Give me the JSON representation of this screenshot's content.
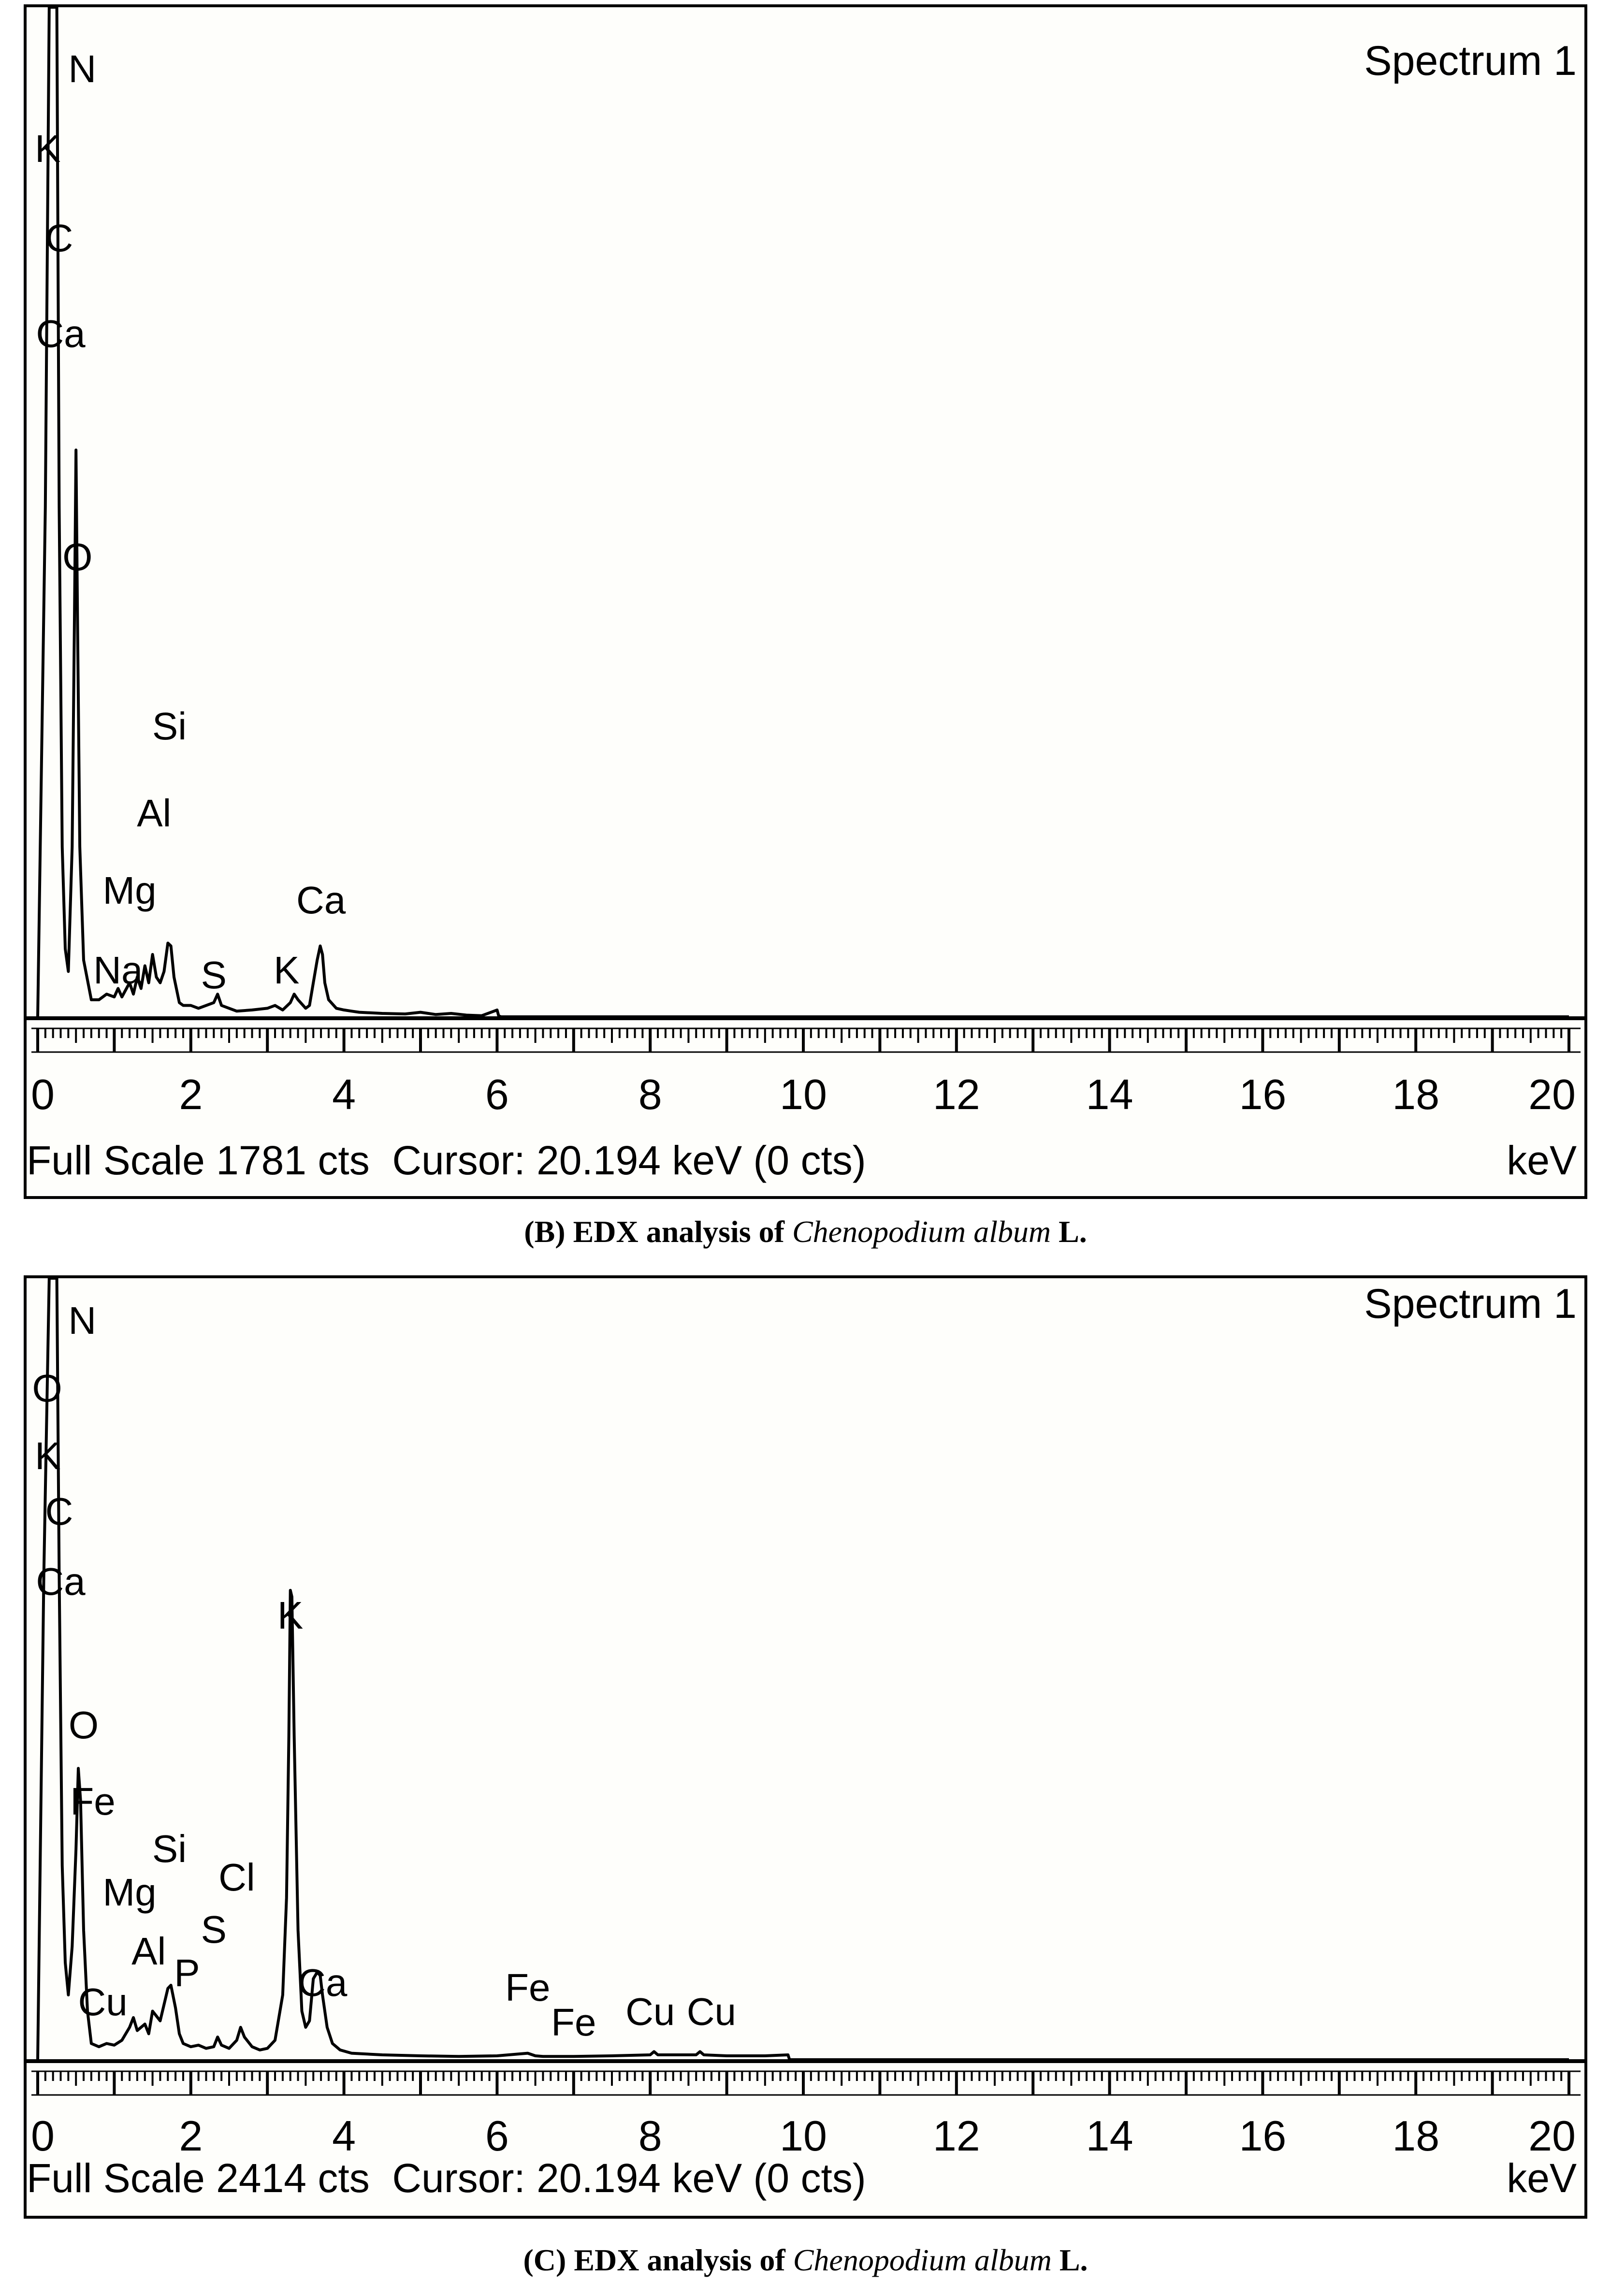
{
  "chart_data": [
    {
      "type": "line",
      "spectrum_label": "Spectrum 1",
      "xlim": [
        0,
        20
      ],
      "x_ticks": [
        0,
        2,
        4,
        6,
        8,
        10,
        12,
        14,
        16,
        18,
        20
      ],
      "x_unit": "keV",
      "full_scale_cts": 1781,
      "status_text": "Full Scale 1781 cts  Cursor: 20.194 keV (0 cts)",
      "series": [
        {
          "x": [
            0,
            0.1,
            0.15,
            0.2,
            0.25,
            0.28,
            0.32,
            0.36,
            0.4,
            0.45,
            0.48,
            0.5,
            0.52,
            0.55,
            0.6,
            0.7,
            0.8,
            0.9,
            1.0,
            1.05,
            1.1,
            1.2,
            1.25,
            1.3,
            1.35,
            1.4,
            1.45,
            1.5,
            1.55,
            1.6,
            1.65,
            1.7,
            1.74,
            1.78,
            1.85,
            1.9,
            2.0,
            2.1,
            2.2,
            2.3,
            2.35,
            2.4,
            2.5,
            2.6,
            2.8,
            3.0,
            3.1,
            3.2,
            3.3,
            3.35,
            3.4,
            3.5,
            3.55,
            3.6,
            3.65,
            3.69,
            3.72,
            3.75,
            3.8,
            3.9,
            4.0,
            4.1,
            4.2,
            4.5,
            4.8,
            5.0,
            5.2,
            5.4,
            5.6,
            5.8,
            6.0,
            6.02,
            6.05,
            6.2,
            20
          ],
          "y": [
            0,
            900,
            2050,
            2300,
            2000,
            900,
            300,
            120,
            80,
            300,
            700,
            1000,
            700,
            300,
            100,
            30,
            30,
            40,
            35,
            50,
            35,
            60,
            40,
            70,
            50,
            90,
            60,
            110,
            70,
            60,
            80,
            130,
            125,
            70,
            25,
            20,
            20,
            15,
            20,
            25,
            40,
            20,
            15,
            10,
            12,
            15,
            20,
            12,
            25,
            40,
            30,
            15,
            20,
            60,
            100,
            125,
            110,
            60,
            30,
            15,
            12,
            10,
            8,
            6,
            5,
            8,
            4,
            6,
            3,
            2,
            12,
            2,
            0,
            0,
            0
          ]
        }
      ],
      "peak_labels": [
        "N",
        "K",
        "C",
        "Ca",
        "O",
        "Si",
        "Al",
        "Mg",
        "Ca",
        "Na",
        "S",
        "K"
      ],
      "caption": {
        "prefix": "(B) EDX analysis of ",
        "species": "Chenopodium album",
        "suffix": " L."
      }
    },
    {
      "type": "line",
      "spectrum_label": "Spectrum 1",
      "xlim": [
        0,
        20
      ],
      "x_ticks": [
        0,
        2,
        4,
        6,
        8,
        10,
        12,
        14,
        16,
        18,
        20
      ],
      "x_unit": "keV",
      "full_scale_cts": 2414,
      "status_text": "Full Scale 2414 cts  Cursor: 20.194 keV (0 cts)",
      "series": [
        {
          "x": [
            0,
            0.08,
            0.15,
            0.2,
            0.25,
            0.28,
            0.32,
            0.36,
            0.4,
            0.45,
            0.5,
            0.53,
            0.56,
            0.6,
            0.65,
            0.7,
            0.8,
            0.9,
            1.0,
            1.1,
            1.2,
            1.25,
            1.3,
            1.4,
            1.45,
            1.5,
            1.6,
            1.7,
            1.74,
            1.8,
            1.85,
            1.9,
            2.0,
            2.1,
            2.2,
            2.3,
            2.35,
            2.4,
            2.5,
            2.6,
            2.65,
            2.7,
            2.8,
            2.9,
            3.0,
            3.1,
            3.2,
            3.25,
            3.28,
            3.3,
            3.32,
            3.35,
            3.4,
            3.45,
            3.5,
            3.55,
            3.6,
            3.65,
            3.69,
            3.72,
            3.78,
            3.85,
            3.95,
            4.1,
            4.5,
            5.0,
            5.5,
            6.0,
            6.4,
            6.5,
            6.6,
            7.0,
            7.5,
            8.0,
            8.05,
            8.1,
            8.6,
            8.65,
            8.7,
            9.0,
            9.5,
            9.8,
            9.82,
            20
          ],
          "y": [
            0,
            1500,
            2700,
            3000,
            2800,
            1500,
            600,
            300,
            200,
            350,
            650,
            900,
            800,
            400,
            150,
            50,
            40,
            50,
            45,
            60,
            100,
            130,
            90,
            110,
            80,
            150,
            120,
            220,
            230,
            160,
            80,
            50,
            40,
            45,
            35,
            40,
            70,
            45,
            35,
            60,
            100,
            70,
            40,
            30,
            35,
            60,
            200,
            500,
            1000,
            1450,
            1430,
            1000,
            400,
            150,
            100,
            120,
            250,
            270,
            260,
            200,
            100,
            50,
            30,
            20,
            15,
            12,
            10,
            12,
            20,
            12,
            10,
            10,
            12,
            15,
            25,
            15,
            15,
            25,
            15,
            12,
            12,
            15,
            0,
            0
          ]
        }
      ],
      "peak_labels": [
        "N",
        "O",
        "K",
        "C",
        "Ca",
        "K",
        "O",
        "Fe",
        "Si",
        "Mg",
        "Cl",
        "S",
        "Al",
        "P",
        "Ca",
        "Cu",
        "Fe",
        "Fe",
        "Cu",
        "Cu"
      ],
      "caption": {
        "prefix": "(C) EDX analysis of ",
        "species": "Chenopodium album",
        "suffix": " L."
      }
    }
  ]
}
